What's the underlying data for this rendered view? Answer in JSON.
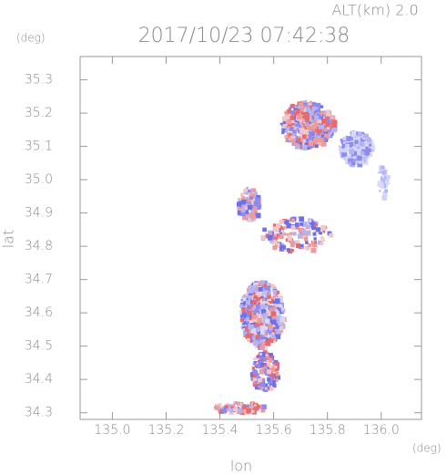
{
  "chart_data": {
    "type": "image",
    "title": "2017/10/23 07:42:38",
    "annotation": "ALT(km) 2.0",
    "xlabel": "lon",
    "ylabel": "lat",
    "x_unit": "(deg)",
    "y_unit": "(deg)",
    "xlim": [
      134.88,
      136.15
    ],
    "ylim": [
      34.28,
      35.37
    ],
    "xticks": [
      {
        "value": 135,
        "label": "135.0"
      },
      135.2,
      135.4,
      135.6,
      135.8,
      {
        "value": 136,
        "label": "136.0"
      }
    ],
    "yticks": [
      34.3,
      34.4,
      34.5,
      34.6,
      34.7,
      34.8,
      34.9,
      {
        "value": 35,
        "label": "35.0"
      },
      35.1,
      35.2,
      35.3
    ]
  }
}
